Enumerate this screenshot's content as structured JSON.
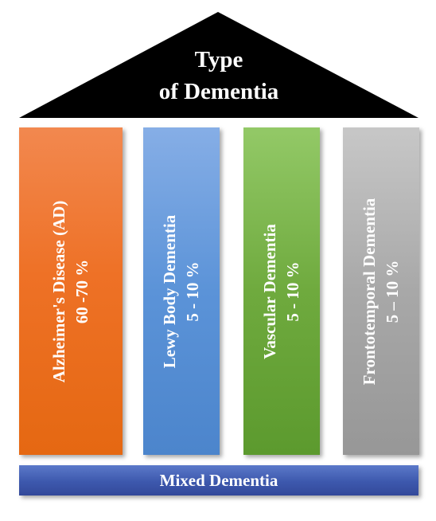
{
  "roof": {
    "title_line1": "Type",
    "title_line2": "of Dementia",
    "color": "#000000"
  },
  "pillars": [
    {
      "name": "Alzheimer's Disease (AD)",
      "range": "60 -70 %",
      "color": "#ee7126"
    },
    {
      "name": "Lewy Body Dementia",
      "range": "5 - 10 %",
      "color": "#5b93d8"
    },
    {
      "name": "Vascular Dementia",
      "range": "5 - 10 %",
      "color": "#6faa3e"
    },
    {
      "name": "Frontotemporal Dementia",
      "range": "5 – 10 %",
      "color": "#a8a8a8"
    }
  ],
  "base": {
    "label": "Mixed Dementia",
    "color": "#3d58ad"
  }
}
